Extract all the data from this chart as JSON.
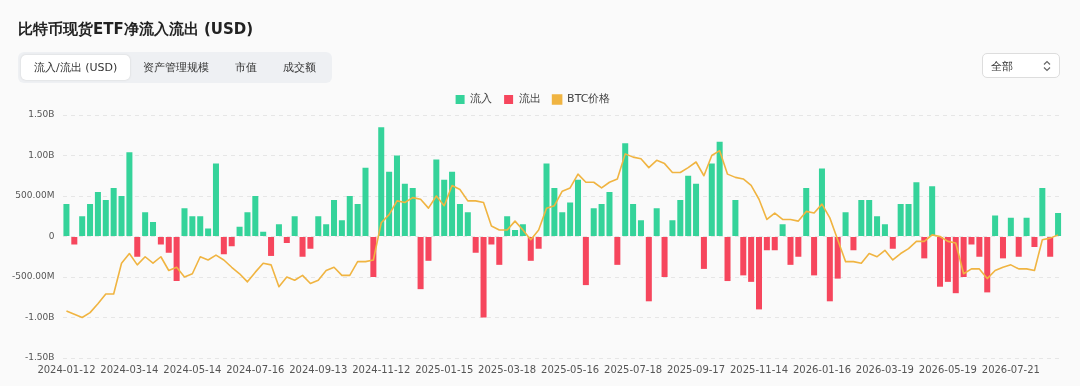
{
  "chart_data": {
    "type": "bar",
    "title": "比特币现货ETF净流入流出 (USD)",
    "annotations": [
      "流入/流出 (USD)",
      "资产管理规模",
      "市值",
      "成交额",
      "全部"
    ],
    "categories": [
      "2024-01-12",
      null,
      null,
      null,
      null,
      null,
      null,
      null,
      "2024-03-14",
      null,
      null,
      null,
      null,
      null,
      null,
      null,
      "2024-05-14",
      null,
      null,
      null,
      null,
      null,
      null,
      null,
      "2024-07-16",
      null,
      null,
      null,
      null,
      null,
      null,
      null,
      "2024-09-13",
      null,
      null,
      null,
      null,
      null,
      null,
      null,
      "2024-11-12",
      null,
      null,
      null,
      null,
      null,
      null,
      null,
      "2025-01-15",
      null,
      null,
      null,
      null,
      null,
      null,
      null,
      "2025-03-18",
      null,
      null,
      null,
      null,
      null,
      null,
      null,
      "2025-05-16",
      null,
      null,
      null,
      null,
      null,
      null,
      null,
      "2025-07-18",
      null,
      null,
      null,
      null,
      null,
      null,
      null,
      "2025-09-17",
      null,
      null,
      null,
      null,
      null,
      null,
      null,
      "2025-11-14",
      null,
      null,
      null,
      null,
      null,
      null,
      null,
      "2026-01-16",
      null,
      null,
      null,
      null,
      null,
      null,
      null,
      "2026-03-19",
      null,
      null,
      null,
      null,
      null,
      null,
      null,
      "2026-05-19",
      null,
      null,
      null,
      null,
      null,
      null,
      null,
      "2026-07-21",
      null,
      null,
      null,
      null,
      null,
      null
    ],
    "stacked": true,
    "series": [
      {
        "name": "流入",
        "color": "#35d39a",
        "values": [
          400000000,
          null,
          250000000,
          400000000,
          550000000,
          450000000,
          600000000,
          500000000,
          1040000000,
          null,
          300000000,
          180000000,
          null,
          null,
          null,
          350000000,
          250000000,
          250000000,
          100000000,
          900000000,
          null,
          null,
          120000000,
          300000000,
          500000000,
          60000000,
          null,
          150000000,
          null,
          250000000,
          null,
          null,
          250000000,
          150000000,
          450000000,
          200000000,
          500000000,
          400000000,
          850000000,
          null,
          1350000000,
          800000000,
          1000000000,
          650000000,
          600000000,
          null,
          null,
          950000000,
          700000000,
          800000000,
          400000000,
          300000000,
          null,
          null,
          null,
          null,
          250000000,
          80000000,
          150000000,
          null,
          null,
          900000000,
          600000000,
          300000000,
          420000000,
          700000000,
          null,
          350000000,
          400000000,
          550000000,
          null,
          1150000000,
          400000000,
          200000000,
          null,
          350000000,
          null,
          200000000,
          450000000,
          750000000,
          650000000,
          null,
          900000000,
          1170000000,
          null,
          450000000,
          null,
          null,
          null,
          null,
          null,
          150000000,
          null,
          null,
          600000000,
          null,
          840000000,
          null,
          null,
          300000000,
          null,
          450000000,
          450000000,
          250000000,
          150000000,
          null,
          400000000,
          400000000,
          670000000,
          null,
          620000000,
          null,
          null,
          null,
          null,
          null,
          null,
          null,
          260000000,
          null,
          230000000,
          null,
          230000000,
          null,
          600000000,
          null,
          290000000
        ]
      },
      {
        "name": "流出",
        "color": "#f6465d",
        "values": [
          null,
          -100000000,
          null,
          null,
          null,
          null,
          null,
          null,
          null,
          -250000000,
          null,
          null,
          -100000000,
          -200000000,
          -550000000,
          null,
          null,
          null,
          null,
          null,
          -220000000,
          -120000000,
          null,
          null,
          null,
          null,
          -240000000,
          null,
          -80000000,
          null,
          -250000000,
          -150000000,
          null,
          null,
          null,
          null,
          null,
          null,
          null,
          -500000000,
          null,
          null,
          null,
          null,
          null,
          -650000000,
          -300000000,
          null,
          null,
          null,
          null,
          null,
          -200000000,
          -1000000000,
          -100000000,
          -350000000,
          null,
          null,
          null,
          -300000000,
          -150000000,
          null,
          null,
          null,
          null,
          null,
          -600000000,
          null,
          null,
          null,
          -350000000,
          null,
          null,
          null,
          -800000000,
          null,
          -500000000,
          null,
          null,
          null,
          null,
          -400000000,
          null,
          null,
          -550000000,
          null,
          -480000000,
          -560000000,
          -900000000,
          -170000000,
          -170000000,
          null,
          -350000000,
          -250000000,
          null,
          -480000000,
          null,
          -800000000,
          -520000000,
          null,
          -170000000,
          null,
          null,
          null,
          null,
          -150000000,
          null,
          null,
          null,
          -270000000,
          null,
          -620000000,
          -560000000,
          -700000000,
          -500000000,
          -100000000,
          -250000000,
          -690000000,
          null,
          -270000000,
          null,
          -250000000,
          null,
          -130000000,
          null,
          -250000000,
          null
        ]
      },
      {
        "name": "BTC价格",
        "type": "line",
        "color": "#f0b441",
        "values": [
          -920000000,
          -960000000,
          -1000000000,
          -940000000,
          -830000000,
          -710000000,
          -710000000,
          -330000000,
          -210000000,
          -350000000,
          -250000000,
          -330000000,
          -250000000,
          -420000000,
          -380000000,
          -500000000,
          -460000000,
          -250000000,
          -290000000,
          -230000000,
          -290000000,
          -380000000,
          -460000000,
          -560000000,
          -440000000,
          -330000000,
          -350000000,
          -620000000,
          -500000000,
          -540000000,
          -480000000,
          -580000000,
          -540000000,
          -420000000,
          -380000000,
          -480000000,
          -480000000,
          -310000000,
          -310000000,
          -290000000,
          170000000,
          270000000,
          440000000,
          420000000,
          480000000,
          460000000,
          350000000,
          500000000,
          380000000,
          630000000,
          580000000,
          440000000,
          440000000,
          420000000,
          130000000,
          80000000,
          80000000,
          190000000,
          80000000,
          -40000000,
          80000000,
          350000000,
          380000000,
          560000000,
          600000000,
          770000000,
          670000000,
          670000000,
          600000000,
          670000000,
          710000000,
          1020000000,
          980000000,
          960000000,
          850000000,
          940000000,
          900000000,
          790000000,
          790000000,
          850000000,
          920000000,
          750000000,
          1000000000,
          1060000000,
          770000000,
          730000000,
          710000000,
          630000000,
          460000000,
          210000000,
          290000000,
          210000000,
          210000000,
          190000000,
          310000000,
          290000000,
          400000000,
          230000000,
          -40000000,
          -310000000,
          -310000000,
          -330000000,
          -210000000,
          -250000000,
          -170000000,
          -290000000,
          -210000000,
          -150000000,
          -60000000,
          -60000000,
          20000000,
          0,
          -60000000,
          -80000000,
          -460000000,
          -400000000,
          -400000000,
          -520000000,
          -420000000,
          -380000000,
          -350000000,
          -400000000,
          -400000000,
          -420000000,
          -40000000,
          -20000000,
          20000000
        ]
      }
    ],
    "ylim": [
      -1500000000,
      1500000000
    ],
    "yticks": [
      {
        "value": -1500000000,
        "label": "-1.50B"
      },
      {
        "value": -1000000000,
        "label": "-1.00B"
      },
      {
        "value": -500000000,
        "label": "-500.00M"
      },
      {
        "value": 0,
        "label": "0"
      },
      {
        "value": 500000000,
        "label": "500.00M"
      },
      {
        "value": 1000000000,
        "label": "1.00B"
      },
      {
        "value": 1500000000,
        "label": "1.50B"
      }
    ],
    "grid": "y",
    "legend": "top",
    "marker": "none"
  }
}
